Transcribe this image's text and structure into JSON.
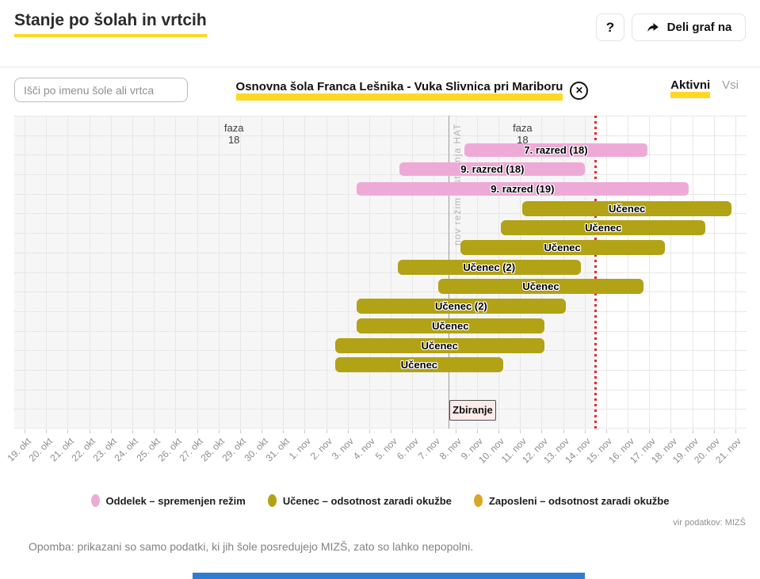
{
  "header": {
    "title": "Stanje po šolah in vrtcih",
    "help_label": "?",
    "share_label": "Deli graf na"
  },
  "controls": {
    "search_placeholder": "Išči po imenu šole ali vrtca",
    "selected_school": "Osnovna šola Franca Lešnika - Vuka Slivnica pri Mariboru",
    "tabs": [
      {
        "label": "Aktivni",
        "active": true
      },
      {
        "label": "Vsi",
        "active": false
      }
    ]
  },
  "chart_data": {
    "type": "gantt",
    "x_dates": [
      "19. okt",
      "20. okt",
      "21. okt",
      "22. okt",
      "23. okt",
      "24. okt",
      "25. okt",
      "26. okt",
      "27. okt",
      "28. okt",
      "29. okt",
      "30. okt",
      "31. okt",
      "1. nov",
      "2. nov",
      "3. nov",
      "4. nov",
      "5. nov",
      "6. nov",
      "7. nov",
      "8. nov",
      "9. nov",
      "10. nov",
      "11. nov",
      "12. nov",
      "13. nov",
      "14. nov",
      "15. nov",
      "16. nov",
      "17. nov",
      "18. nov",
      "19. nov",
      "20. nov",
      "21. nov"
    ],
    "bars": [
      {
        "label": "7. razred (18)",
        "type": "oddelek",
        "start": 20.4,
        "end": 28.9,
        "row": 1
      },
      {
        "label": "9. razred (18)",
        "type": "oddelek",
        "start": 17.4,
        "end": 26.0,
        "row": 2
      },
      {
        "label": "9. razred (19)",
        "type": "oddelek",
        "start": 15.4,
        "end": 30.8,
        "row": 3
      },
      {
        "label": "Učenec",
        "type": "ucenec",
        "start": 23.1,
        "end": 32.8,
        "row": 4
      },
      {
        "label": "Učenec",
        "type": "ucenec",
        "start": 22.1,
        "end": 31.6,
        "row": 5
      },
      {
        "label": "Učenec",
        "type": "ucenec",
        "start": 20.2,
        "end": 29.7,
        "row": 6
      },
      {
        "label": "Učenec (2)",
        "type": "ucenec",
        "start": 17.3,
        "end": 25.8,
        "row": 7
      },
      {
        "label": "Učenec",
        "type": "ucenec",
        "start": 19.2,
        "end": 28.7,
        "row": 8
      },
      {
        "label": "Učenec (2)",
        "type": "ucenec",
        "start": 15.4,
        "end": 25.1,
        "row": 9
      },
      {
        "label": "Učenec",
        "type": "ucenec",
        "start": 15.4,
        "end": 24.1,
        "row": 10
      },
      {
        "label": "Učenec",
        "type": "ucenec",
        "start": 14.4,
        "end": 24.1,
        "row": 11
      },
      {
        "label": "Učenec",
        "type": "ucenec",
        "start": 14.4,
        "end": 22.2,
        "row": 12
      }
    ],
    "phase_labels": [
      {
        "line1": "faza",
        "line2": "18",
        "day": 9.7
      },
      {
        "line1": "faza",
        "line2": "18",
        "day": 23.1
      }
    ],
    "regime_line": {
      "day": 19.7,
      "label": "nov režim testiranja HAT"
    },
    "today_line": {
      "day": 26.5
    },
    "collection_box": {
      "label": "Zbiranje",
      "day": 19.7,
      "row": 14.3
    },
    "colors": {
      "pink": "#eeaad7",
      "olive": "#b2a215",
      "orange": "#d9a627",
      "red": "#e8272c",
      "grid": "#e7e7e7",
      "past_bg": "#f6f6f6",
      "regime": "#9c9c9c",
      "tick": "#c9c9d6",
      "axis_text": "#8c8c8c"
    }
  },
  "legend": [
    {
      "label": "Oddelek – spremenjen režim",
      "type": "oddelek"
    },
    {
      "label": "Učenec – odsotnost zaradi okužbe",
      "type": "ucenec"
    },
    {
      "label": "Zaposleni – odsotnost zaradi okužbe",
      "type": "zaposleni"
    }
  ],
  "source": "vir podatkov: MIZŠ",
  "note": "Opomba: prikazani so samo podatki, ki jih šole posredujejo MIZŠ, zato so lahko nepopolni."
}
